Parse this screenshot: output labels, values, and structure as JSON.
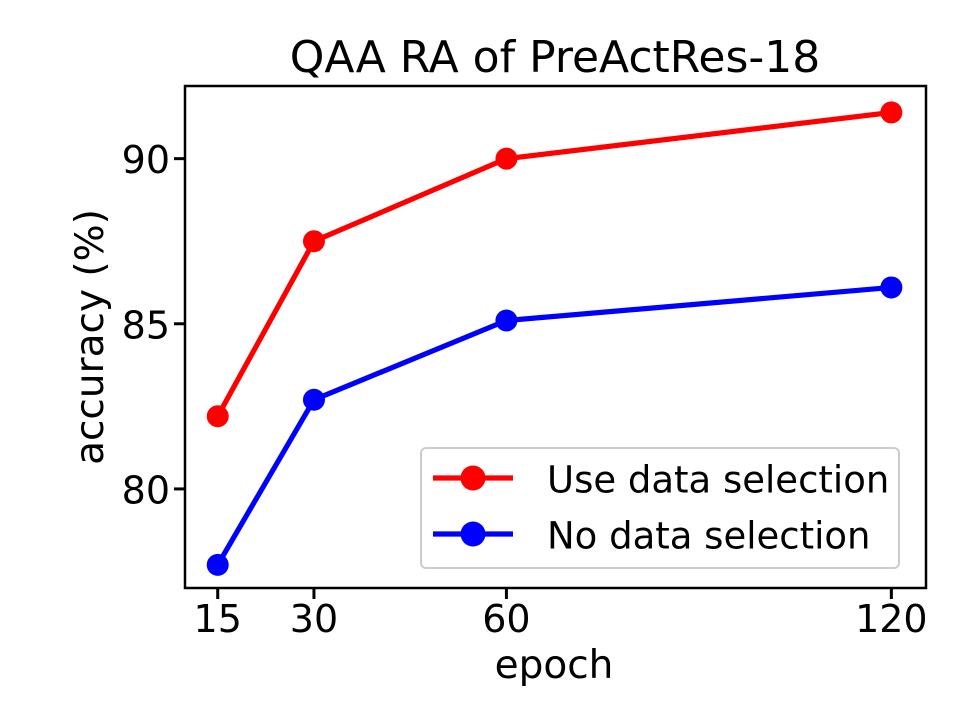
{
  "chart_data": {
    "type": "line",
    "title": "QAA RA of PreActRes-18",
    "xlabel": "epoch",
    "ylabel": "accuracy (%)",
    "x": [
      15,
      30,
      60,
      120
    ],
    "x_tick_labels": [
      "15",
      "30",
      "60",
      "120"
    ],
    "y_ticks": [
      80,
      85,
      90
    ],
    "y_tick_labels": [
      "80",
      "85",
      "90"
    ],
    "xlim": [
      9.9,
      125.4
    ],
    "ylim": [
      77.0,
      92.2
    ],
    "grid": false,
    "legend_position": "lower-right-inside",
    "series": [
      {
        "name": "Use data selection",
        "color": "#ff0000",
        "values": [
          82.2,
          87.5,
          90.0,
          91.4
        ]
      },
      {
        "name": "No data selection",
        "color": "#0000ff",
        "values": [
          77.7,
          82.7,
          85.1,
          86.1
        ]
      }
    ],
    "colors": {
      "spine": "#000000",
      "background": "#ffffff",
      "legend_border": "#cccccc"
    }
  }
}
